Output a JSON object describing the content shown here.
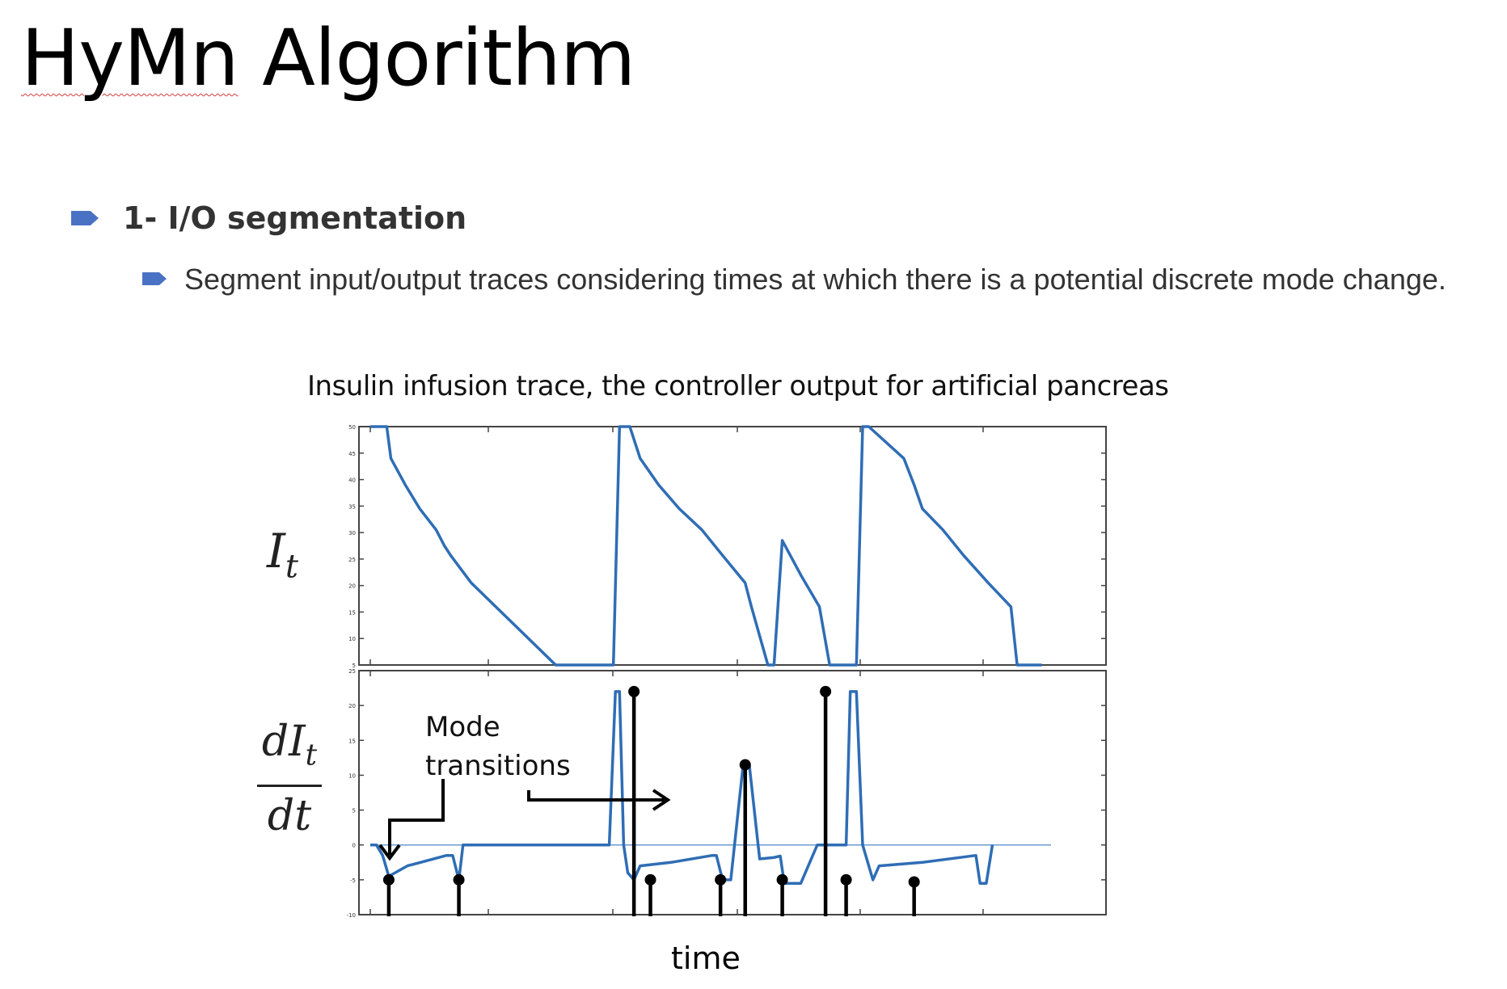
{
  "slide": {
    "title_word1": "HyMn",
    "title_word2": "Algorithm",
    "bullet1": "1- I/O segmentation",
    "bullet2": "Segment input/output traces considering times at which there is a potential discrete mode change.",
    "accent_color": "#4a72c4"
  },
  "chart_data": {
    "type": "line",
    "title": "Insulin infusion trace, the controller output for artificial pancreas",
    "xlabel": "time",
    "annotation": [
      "Mode",
      "transitions"
    ],
    "line_color": "#2f6db5",
    "marker_color": "#000000",
    "panels": [
      {
        "name": "top",
        "ylabel": "I_t",
        "ylim": [
          5,
          50
        ],
        "yticks": [
          "5",
          "10",
          "15",
          "20",
          "25",
          "30",
          "35",
          "40",
          "45",
          "50"
        ],
        "series": {
          "x": [
            0,
            8,
            16,
            20,
            34,
            48,
            64,
            72,
            78,
            98,
            180,
            236,
            242,
            252,
            262,
            280,
            300,
            322,
            342,
            364,
            370,
            386,
            392,
            400,
            418,
            436,
            446,
            472,
            478,
            484,
            518,
            528,
            536,
            556,
            576,
            600,
            622,
            628,
            652
          ],
          "y": [
            50,
            50,
            50,
            44,
            39,
            34.5,
            30.5,
            27.5,
            25.7,
            20.5,
            5,
            5,
            50,
            50,
            44,
            39,
            34.5,
            30.5,
            25.7,
            20.5,
            16,
            5,
            5,
            28.5,
            22,
            16,
            5,
            5,
            50,
            50,
            44,
            39,
            34.5,
            30.5,
            25.7,
            20.5,
            16,
            5,
            5
          ]
        }
      },
      {
        "name": "bottom",
        "ylabel": "dI_t/dt",
        "ylim": [
          -10,
          25
        ],
        "yticks": [
          "-10",
          "-5",
          "0",
          "5",
          "10",
          "15",
          "20",
          "25"
        ],
        "baseline": 0,
        "series": {
          "x": [
            0,
            6,
            12,
            18,
            36,
            74,
            80,
            86,
            90,
            232,
            238,
            242,
            246,
            250,
            256,
            262,
            292,
            332,
            336,
            342,
            350,
            362,
            368,
            378,
            392,
            398,
            402,
            418,
            434,
            440,
            446,
            462,
            466,
            472,
            478,
            484,
            488,
            494,
            536,
            588,
            592,
            598,
            604
          ],
          "y": [
            0,
            0,
            -1.5,
            -4.5,
            -3,
            -1.5,
            -1.5,
            -5,
            0,
            0,
            22,
            22,
            0,
            -4,
            -5,
            -3,
            -2.5,
            -1.5,
            -1.5,
            -5,
            -5,
            11.5,
            11.5,
            -2,
            -1.8,
            -1.6,
            -5.5,
            -5.5,
            0,
            0,
            0,
            0,
            22,
            22,
            0,
            -3,
            -5,
            -3,
            -2.5,
            -1.5,
            -5.5,
            -5.5,
            0
          ]
        },
        "transitions": [
          {
            "x": 18,
            "y": -5
          },
          {
            "x": 86,
            "y": -5
          },
          {
            "x": 256,
            "y": 22
          },
          {
            "x": 272,
            "y": -5
          },
          {
            "x": 340,
            "y": -5
          },
          {
            "x": 364,
            "y": 11.5
          },
          {
            "x": 400,
            "y": -5
          },
          {
            "x": 442,
            "y": 22
          },
          {
            "x": 462,
            "y": -5
          },
          {
            "x": 528,
            "y": -5.3
          }
        ]
      }
    ]
  }
}
